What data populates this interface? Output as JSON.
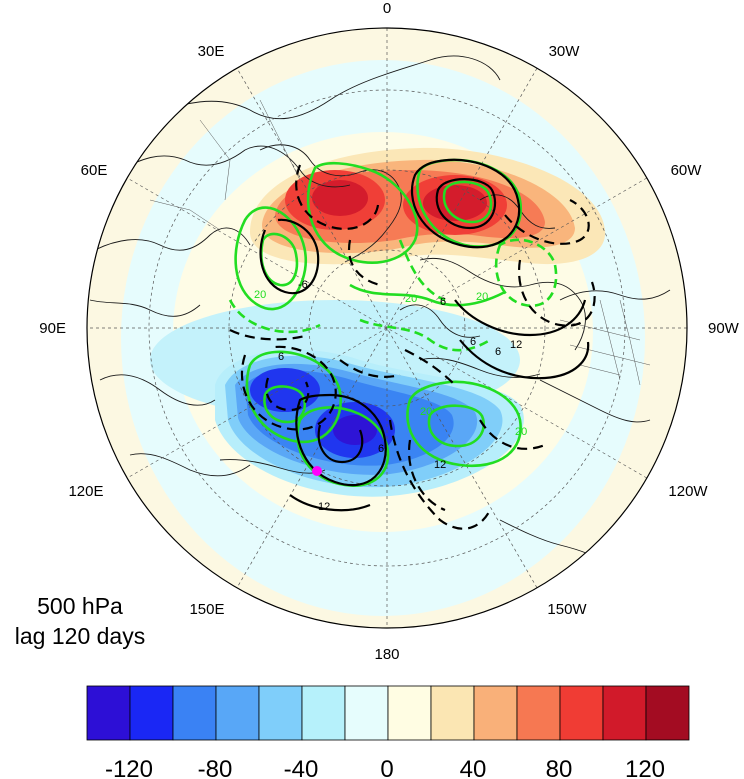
{
  "map": {
    "projection": "north-polar-stereographic",
    "longitude_labels": [
      {
        "text": "0",
        "lon": 0
      },
      {
        "text": "30W",
        "lon": -30
      },
      {
        "text": "60W",
        "lon": -60
      },
      {
        "text": "90W",
        "lon": -90
      },
      {
        "text": "120W",
        "lon": -120
      },
      {
        "text": "150W",
        "lon": -150
      },
      {
        "text": "180",
        "lon": 180
      },
      {
        "text": "150E",
        "lon": 150
      },
      {
        "text": "120E",
        "lon": 120
      },
      {
        "text": "90E",
        "lon": 90
      },
      {
        "text": "60E",
        "lon": 60
      },
      {
        "text": "30E",
        "lon": 30
      }
    ],
    "marker_color": "#ff00ff",
    "contour_colors": {
      "black": "#000000",
      "green": "#22dd22"
    },
    "contour_labels": [
      {
        "text": "6",
        "color": "#000000"
      },
      {
        "text": "6",
        "color": "#000000"
      },
      {
        "text": "12",
        "color": "#000000"
      },
      {
        "text": "6",
        "color": "#000000"
      },
      {
        "text": "12",
        "color": "#000000"
      },
      {
        "text": "6",
        "color": "#000000"
      },
      {
        "text": "6",
        "color": "#000000"
      },
      {
        "text": "12",
        "color": "#000000"
      },
      {
        "text": "-6",
        "color": "#000000"
      },
      {
        "text": "20",
        "color": "#22dd22"
      },
      {
        "text": "20",
        "color": "#22dd22"
      },
      {
        "text": "20",
        "color": "#22dd22"
      },
      {
        "text": "20",
        "color": "#22dd22"
      },
      {
        "text": "20",
        "color": "#22dd22"
      }
    ]
  },
  "caption": {
    "line1": "500 hPa",
    "line2": "lag 120 days"
  },
  "colorbar": {
    "colors": [
      "#2d0fd6",
      "#1a27f5",
      "#3a82f4",
      "#58a7f7",
      "#7fcefa",
      "#b6f1fb",
      "#e6fdfd",
      "#fffde3",
      "#fbe6b3",
      "#f9b079",
      "#f67852",
      "#f03c34",
      "#d11a2a",
      "#a30c22"
    ],
    "tick_labels": [
      "-120",
      "-80",
      "-40",
      "0",
      "40",
      "80",
      "120"
    ]
  }
}
